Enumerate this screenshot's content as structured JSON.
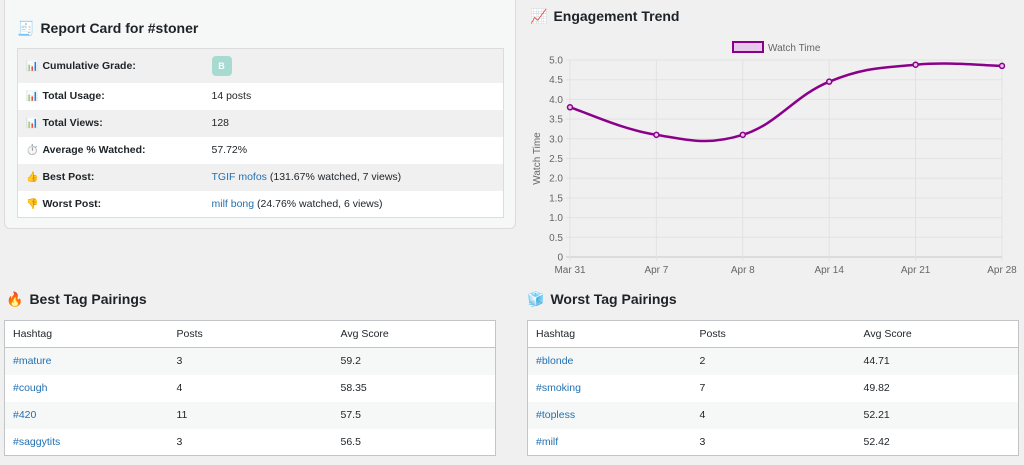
{
  "report": {
    "icon": "🧾",
    "title": "Report Card for #stoner",
    "rows": [
      {
        "icon": "📊",
        "label": "Cumulative Grade:",
        "grade": "B"
      },
      {
        "icon": "📊",
        "label": "Total Usage:",
        "value": "14 posts"
      },
      {
        "icon": "📊",
        "label": "Total Views:",
        "value": "128"
      },
      {
        "icon": "⏱️",
        "label": "Average % Watched:",
        "value": "57.72%"
      },
      {
        "icon": "👍",
        "label": "Best Post:",
        "link": "TGIF mofos",
        "suffix": " (131.67% watched, 7 views)"
      },
      {
        "icon": "👎",
        "label": "Worst Post:",
        "link": "milf bong",
        "suffix": " (24.76% watched, 6 views)"
      }
    ]
  },
  "trend": {
    "icon": "📈",
    "title": "Engagement Trend"
  },
  "chart_data": {
    "type": "line",
    "x": [
      "Mar 31",
      "Apr 7",
      "Apr 8",
      "Apr 14",
      "Apr 21",
      "Apr 28"
    ],
    "series": [
      {
        "name": "Watch Time",
        "values": [
          3.8,
          3.1,
          3.1,
          4.45,
          4.88,
          4.85
        ]
      }
    ],
    "ylabel": "Watch Time",
    "xlabel": "",
    "ylim": [
      0,
      5
    ],
    "yticks": [
      "0",
      "0.5",
      "1.0",
      "1.5",
      "2.0",
      "2.5",
      "3.0",
      "3.5",
      "4.0",
      "4.5",
      "5.0"
    ],
    "grid": true,
    "legend": "top",
    "color": "#8b008b",
    "fill": "#e7c8ea"
  },
  "best": {
    "icon": "🔥",
    "title": "Best Tag Pairings",
    "columns": [
      "Hashtag",
      "Posts",
      "Avg Score"
    ],
    "rows": [
      [
        "#mature",
        "3",
        "59.2"
      ],
      [
        "#cough",
        "4",
        "58.35"
      ],
      [
        "#420",
        "11",
        "57.5"
      ],
      [
        "#saggytits",
        "3",
        "56.5"
      ]
    ]
  },
  "worst": {
    "icon": "🧊",
    "title": "Worst Tag Pairings",
    "columns": [
      "Hashtag",
      "Posts",
      "Avg Score"
    ],
    "rows": [
      [
        "#blonde",
        "2",
        "44.71"
      ],
      [
        "#smoking",
        "7",
        "49.82"
      ],
      [
        "#topless",
        "4",
        "52.21"
      ],
      [
        "#milf",
        "3",
        "52.42"
      ]
    ]
  }
}
